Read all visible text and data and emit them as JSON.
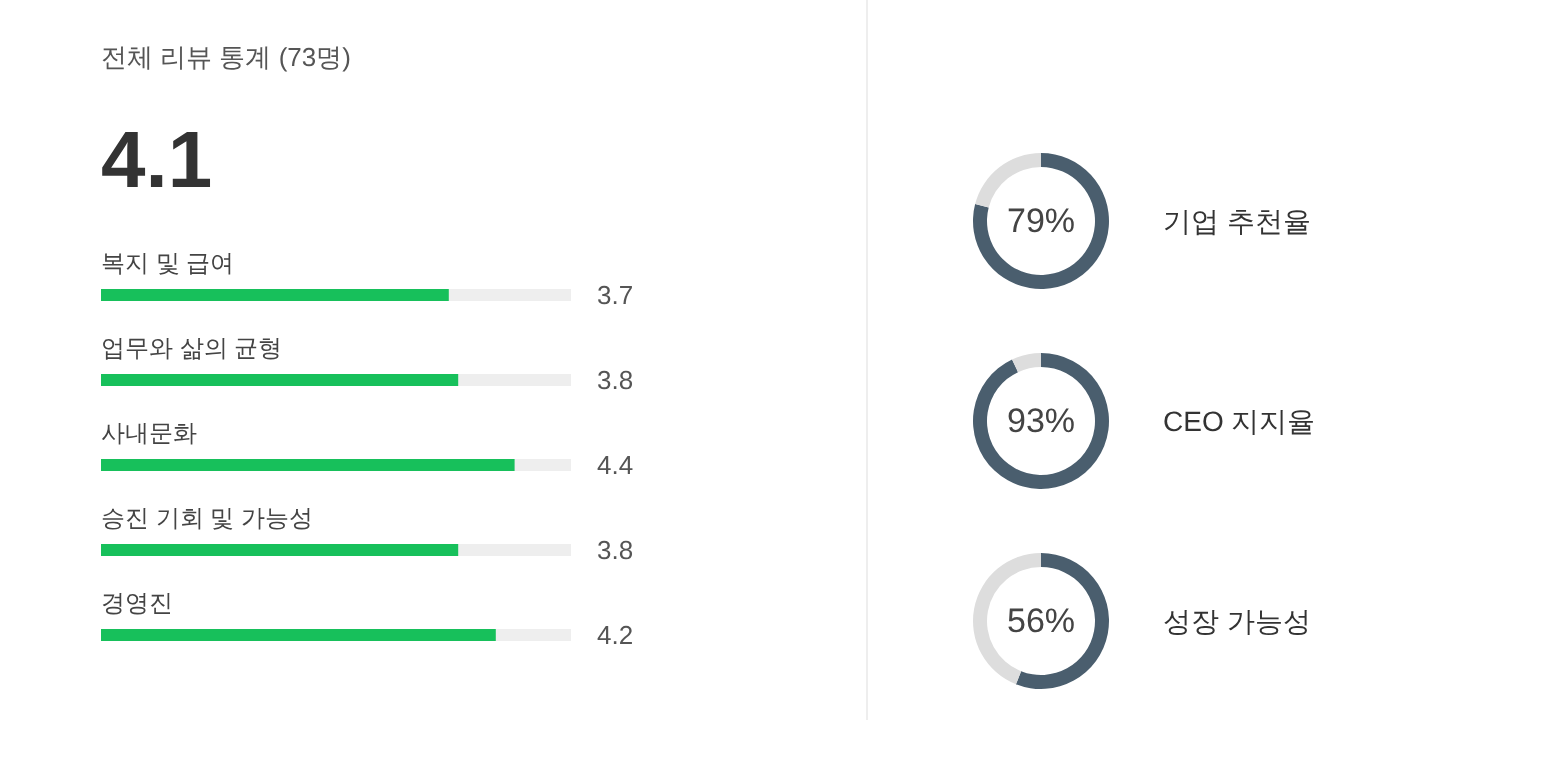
{
  "chart_data": [
    {
      "type": "bar",
      "orientation": "horizontal",
      "title": "전체 리뷰 통계 (73명)",
      "annotations": [
        "4.1"
      ],
      "categories": [
        "복지 및 급여",
        "업무와 삶의 균형",
        "사내문화",
        "승진 기회 및 가능성",
        "경영진"
      ],
      "values": [
        3.7,
        3.8,
        4.4,
        3.8,
        4.2
      ],
      "color": "#17c05b",
      "xlim": [
        0,
        5
      ],
      "data_labels": true,
      "tick_labels": false
    },
    {
      "type": "donut",
      "title": "기업 추천율",
      "categories": [
        null,
        null
      ],
      "values": [
        79,
        21
      ],
      "colors": [
        "#4a5e6e",
        "#dddddd"
      ],
      "value_labels": [
        "79%",
        null
      ]
    },
    {
      "type": "donut",
      "title": "CEO 지지율",
      "categories": [
        null,
        null
      ],
      "values": [
        93,
        7
      ],
      "colors": [
        "#4a5e6e",
        "#dddddd"
      ],
      "value_labels": [
        "93%",
        null
      ]
    },
    {
      "type": "donut",
      "title": "성장 가능성",
      "categories": [
        null,
        null
      ],
      "values": [
        56,
        44
      ],
      "colors": [
        "#4a5e6e",
        "#dddddd"
      ],
      "value_labels": [
        "56%",
        null
      ]
    }
  ]
}
